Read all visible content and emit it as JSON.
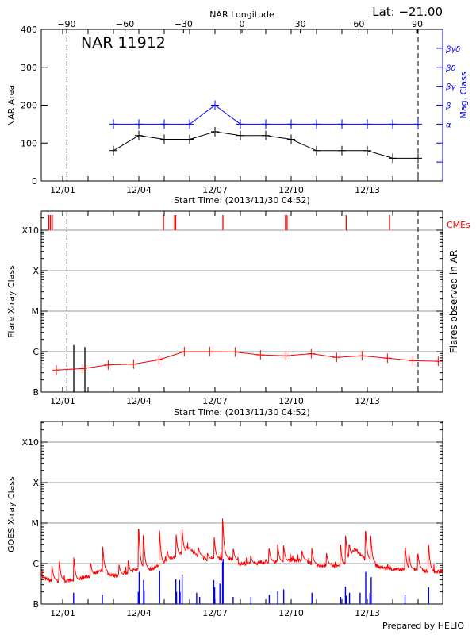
{
  "header": {
    "lat_label": "Lat: −21.00",
    "footer": "Prepared by HELIO"
  },
  "chart_data": [
    {
      "type": "line",
      "panel": "nar",
      "title": "NAR 11912",
      "top_xlabel": "NAR Longitude",
      "top_ticks": [
        "-90",
        "-60",
        "-30",
        "0",
        "30",
        "60",
        "90"
      ],
      "top_tick_values": [
        -90,
        -60,
        -30,
        0,
        30,
        60,
        90
      ],
      "xlabel": "Start Time: (2013/11/30 04:52)",
      "x_ticks": [
        "12/01",
        "12/04",
        "12/07",
        "12/10",
        "12/13"
      ],
      "x_range": [
        "2013-11-30T04:52",
        "2013-12-15T20:00"
      ],
      "ylabel": "NAR Area",
      "ylim": [
        0,
        400
      ],
      "y_ticks": [
        "0",
        "100",
        "200",
        "300",
        "400"
      ],
      "y2label": "Mag. Class",
      "y2_ticks": [
        "α",
        "β",
        "βγ",
        "βδ",
        "βγδ"
      ],
      "limb_lines": [
        "2013-12-01T04:00",
        "2013-12-15T00:00"
      ],
      "x": [
        "2013-12-03",
        "2013-12-04",
        "2013-12-05",
        "2013-12-06",
        "2013-12-07",
        "2013-12-08",
        "2013-12-09",
        "2013-12-10",
        "2013-12-11",
        "2013-12-12",
        "2013-12-13",
        "2013-12-14",
        "2013-12-15"
      ],
      "series": [
        {
          "values": [
            80,
            120,
            110,
            110,
            130,
            120,
            120,
            110,
            80,
            80,
            80,
            60,
            60
          ],
          "color": "#000000"
        },
        {
          "name_axis": "Mag. Class",
          "values": [
            "α",
            "α",
            "α",
            "α",
            "β",
            "α",
            "α",
            "α",
            "α",
            "α",
            "α",
            "α",
            "α"
          ],
          "color": "#0000ff"
        }
      ]
    },
    {
      "type": "line",
      "panel": "flares",
      "xlabel": "Start Time: (2013/11/30 04:52)",
      "x_ticks": [
        "12/01",
        "12/04",
        "12/07",
        "12/10",
        "12/13"
      ],
      "ylabel": "Flare X-ray Class",
      "y2label": "Flares observed in AR",
      "y_scale": "log",
      "y_ticks": [
        "B",
        "C",
        "M",
        "X",
        "X10"
      ],
      "ylim_flux": [
        1e-07,
        0.0032
      ],
      "grid": true,
      "cme_label": "CMEs",
      "cmes": [
        "2013-11-30T11:00",
        "2013-11-30T12:30",
        "2013-11-30T14:10",
        "2013-12-04T23:20",
        "2013-12-05T09:50",
        "2013-12-05T10:50",
        "2013-12-07T07:30",
        "2013-12-09T18:40",
        "2013-12-09T20:10",
        "2013-12-12T04:00",
        "2013-12-13T21:00"
      ],
      "flares_in_ar": [
        [
          "2013-12-01T10:30",
          1.45e-06
        ],
        [
          "2013-12-01T21:00",
          1.3e-06
        ]
      ],
      "limb_lines": [
        "2013-12-01T04:00",
        "2013-12-15T00:00"
      ],
      "background": {
        "x": [
          "2013-11-30T18:00",
          "2013-12-01T19:00",
          "2013-12-02T19:00",
          "2013-12-03T19:00",
          "2013-12-04T19:00",
          "2013-12-05T19:00",
          "2013-12-06T19:00",
          "2013-12-07T19:00",
          "2013-12-08T19:00",
          "2013-12-09T19:00",
          "2013-12-10T19:00",
          "2013-12-11T19:00",
          "2013-12-12T19:00",
          "2013-12-13T19:00",
          "2013-12-14T19:00",
          "2013-12-15T19:00"
        ],
        "flux": [
          3.5e-07,
          3.8e-07,
          4.7e-07,
          4.9e-07,
          6.3e-07,
          1e-06,
          1e-06,
          9.8e-07,
          8.3e-07,
          7.9e-07,
          8.9e-07,
          7.2e-07,
          7.9e-07,
          6.9e-07,
          6e-07,
          5.8e-07
        ],
        "color": "#ff0000"
      }
    },
    {
      "type": "line",
      "panel": "goes",
      "x_ticks": [
        "12/01",
        "12/04",
        "12/07",
        "12/10",
        "12/13"
      ],
      "ylabel": "GOES X-ray Class",
      "y_scale": "log",
      "y_ticks": [
        "B",
        "C",
        "M",
        "X",
        "X10"
      ],
      "ylim_flux": [
        1e-07,
        0.0032
      ],
      "grid": true,
      "goes_baseline": [
        [
          "2013-11-30T04:52",
          4.5e-07
        ],
        [
          "2013-11-30T12:00",
          3.8e-07
        ],
        [
          "2013-12-01T00:00",
          3.7e-07
        ],
        [
          "2013-12-01T12:00",
          3.9e-07
        ],
        [
          "2013-12-02T00:00",
          4.8e-07
        ],
        [
          "2013-12-02T12:00",
          6.5e-07
        ],
        [
          "2013-12-03T00:00",
          5.1e-07
        ],
        [
          "2013-12-03T12:00",
          5.6e-07
        ],
        [
          "2013-12-04T00:00",
          7.5e-07
        ],
        [
          "2013-12-04T12:00",
          7.2e-07
        ],
        [
          "2013-12-05T00:00",
          1.1e-06
        ],
        [
          "2013-12-05T12:00",
          1.6e-06
        ],
        [
          "2013-12-06T00:00",
          2.3e-06
        ],
        [
          "2013-12-06T12:00",
          1.3e-06
        ],
        [
          "2013-12-07T00:00",
          1.3e-06
        ],
        [
          "2013-12-07T12:00",
          1.4e-06
        ],
        [
          "2013-12-08T00:00",
          1e-06
        ],
        [
          "2013-12-08T12:00",
          1e-06
        ],
        [
          "2013-12-09T00:00",
          1.1e-06
        ],
        [
          "2013-12-09T12:00",
          1.1e-06
        ],
        [
          "2013-12-10T00:00",
          1.2e-06
        ],
        [
          "2013-12-10T12:00",
          1.2e-06
        ],
        [
          "2013-12-11T00:00",
          8.7e-07
        ],
        [
          "2013-12-11T12:00",
          9.4e-07
        ],
        [
          "2013-12-12T00:00",
          8.1e-07
        ],
        [
          "2013-12-12T12:00",
          2.3e-06
        ],
        [
          "2013-12-13T00:00",
          1.1e-06
        ],
        [
          "2013-12-13T12:00",
          8.1e-07
        ],
        [
          "2013-12-14T00:00",
          7.2e-07
        ],
        [
          "2013-12-14T12:00",
          7e-07
        ],
        [
          "2013-12-15T00:00",
          7.2e-07
        ],
        [
          "2013-12-15T12:00",
          6.2e-07
        ],
        [
          "2013-12-16T00:00",
          6.5e-07
        ]
      ],
      "goes_spikes": [
        [
          "2013-11-30T14:00",
          8.7e-07
        ],
        [
          "2013-11-30T21:00",
          1.1e-06
        ],
        [
          "2013-12-01T10:40",
          1.4e-06
        ],
        [
          "2013-12-02T02:40",
          1e-06
        ],
        [
          "2013-12-02T14:00",
          2.6e-06
        ],
        [
          "2013-12-03T05:20",
          9.4e-07
        ],
        [
          "2013-12-03T14:00",
          1.2e-06
        ],
        [
          "2013-12-04T00:00",
          7e-06
        ],
        [
          "2013-12-04T04:30",
          4.9e-06
        ],
        [
          "2013-12-04T19:40",
          6.5e-06
        ],
        [
          "2013-12-05T03:00",
          2e-06
        ],
        [
          "2013-12-05T11:20",
          5.2e-06
        ],
        [
          "2013-12-05T17:00",
          7e-06
        ],
        [
          "2013-12-05T21:20",
          2.6e-06
        ],
        [
          "2013-12-06T08:20",
          2.5e-06
        ],
        [
          "2013-12-06T17:00",
          1.8e-06
        ],
        [
          "2013-12-06T23:20",
          4.5e-06
        ],
        [
          "2013-12-07T07:20",
          1.3e-05
        ],
        [
          "2013-12-07T17:30",
          2.3e-06
        ],
        [
          "2013-12-08T10:00",
          1.5e-06
        ],
        [
          "2013-12-09T03:20",
          2.3e-06
        ],
        [
          "2013-12-09T11:20",
          3e-06
        ],
        [
          "2013-12-09T17:00",
          2.8e-06
        ],
        [
          "2013-12-10T10:30",
          2e-06
        ],
        [
          "2013-12-10T19:40",
          2.4e-06
        ],
        [
          "2013-12-11T09:30",
          1.8e-06
        ],
        [
          "2013-12-11T22:50",
          2.9e-06
        ],
        [
          "2013-12-12T03:40",
          4.9e-06
        ],
        [
          "2013-12-12T07:10",
          2.9e-06
        ],
        [
          "2013-12-12T22:30",
          6.2e-06
        ],
        [
          "2013-12-13T03:20",
          4.9e-06
        ],
        [
          "2013-12-14T12:00",
          2.4e-06
        ],
        [
          "2013-12-14T15:30",
          1.7e-06
        ],
        [
          "2013-12-15T00:00",
          1.7e-06
        ],
        [
          "2013-12-15T10:00",
          3e-06
        ]
      ],
      "goes_color": "#ff0000",
      "events": [
        [
          "2013-12-01T10:20",
          1.9e-07
        ],
        [
          "2013-12-02T13:30",
          1.7e-07
        ],
        [
          "2013-12-03T23:30",
          2e-07
        ],
        [
          "2013-12-04T00:20",
          6.2e-07
        ],
        [
          "2013-12-04T04:30",
          3.9e-07
        ],
        [
          "2013-12-04T05:00",
          2.2e-07
        ],
        [
          "2013-12-04T19:40",
          6.5e-07
        ],
        [
          "2013-12-05T11:00",
          4.1e-07
        ],
        [
          "2013-12-05T11:40",
          2e-07
        ],
        [
          "2013-12-05T14:30",
          3.9e-07
        ],
        [
          "2013-12-05T15:00",
          2e-07
        ],
        [
          "2013-12-05T17:00",
          5.4e-07
        ],
        [
          "2013-12-06T06:40",
          1.9e-07
        ],
        [
          "2013-12-06T09:30",
          1.5e-07
        ],
        [
          "2013-12-06T22:50",
          3.9e-07
        ],
        [
          "2013-12-06T23:40",
          2.6e-07
        ],
        [
          "2013-12-07T04:40",
          3.2e-07
        ],
        [
          "2013-12-07T07:10",
          1.1e-06
        ],
        [
          "2013-12-07T07:40",
          1.3e-06
        ],
        [
          "2013-12-07T17:10",
          1.5e-07
        ],
        [
          "2013-12-08T10:00",
          1.5e-07
        ],
        [
          "2013-12-09T03:20",
          1.7e-07
        ],
        [
          "2013-12-09T11:20",
          2.1e-07
        ],
        [
          "2013-12-09T17:00",
          2.3e-07
        ],
        [
          "2013-12-10T19:40",
          1.9e-07
        ],
        [
          "2013-12-11T22:50",
          1.5e-07
        ],
        [
          "2013-12-12T03:20",
          2.7e-07
        ],
        [
          "2013-12-12T04:10",
          1.6e-07
        ],
        [
          "2013-12-12T07:10",
          1.9e-07
        ],
        [
          "2013-12-12T17:10",
          1.9e-07
        ],
        [
          "2013-12-12T22:30",
          6.2e-07
        ],
        [
          "2013-12-13T02:30",
          1.9e-07
        ],
        [
          "2013-12-13T03:40",
          4.6e-07
        ],
        [
          "2013-12-14T11:40",
          1.7e-07
        ],
        [
          "2013-12-15T10:00",
          2.6e-07
        ]
      ],
      "events_color": "#0000ff"
    }
  ]
}
